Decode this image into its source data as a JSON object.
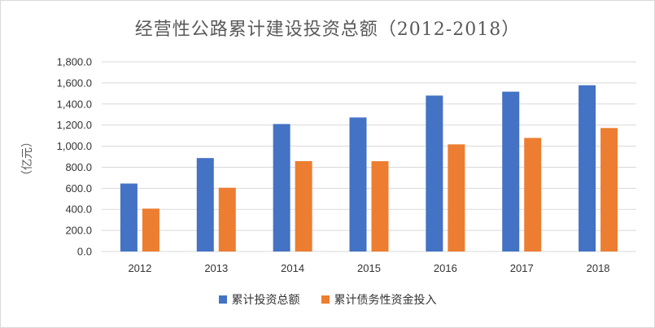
{
  "chart_data": {
    "type": "bar",
    "title": "经营性公路累计建设投资总额（2012-2018）",
    "ylabel": "（亿元）",
    "xlabel": "",
    "categories": [
      "2012",
      "2013",
      "2014",
      "2015",
      "2016",
      "2017",
      "2018"
    ],
    "series": [
      {
        "name": "累计投资总额",
        "color": "#4472C4",
        "values": [
          645,
          887,
          1210,
          1272,
          1480,
          1517,
          1578
        ]
      },
      {
        "name": "累计债务性资金投入",
        "color": "#ED7D31",
        "values": [
          407,
          605,
          858,
          857,
          1017,
          1078,
          1172
        ]
      }
    ],
    "ylim": [
      0,
      1800
    ],
    "yticks": [
      "0.0",
      "200.0",
      "400.0",
      "600.0",
      "800.0",
      "1,000.0",
      "1,200.0",
      "1,400.0",
      "1,600.0",
      "1,800.0"
    ],
    "grid": true,
    "legend_position": "bottom"
  }
}
